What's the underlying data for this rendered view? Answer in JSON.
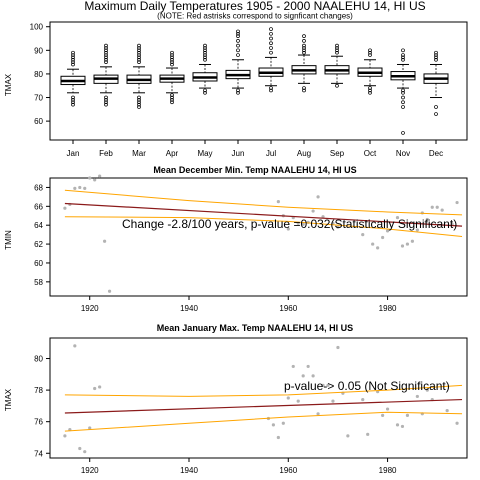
{
  "colors": {
    "box": "#000000",
    "trend": "#8b1a1a",
    "confidence": "#ffa500",
    "point": "#b3b3b3"
  },
  "chart_data": [
    {
      "type": "box",
      "title": "Maximum Daily Temperatures 1905 - 2000 NAALEHU 14, HI US",
      "subtitle": "(NOTE: Red astrisks correspond to signficant changes)",
      "ylabel": "TMAX",
      "xlabel": "",
      "ylim": [
        52,
        102
      ],
      "yticks": [
        60,
        70,
        80,
        90,
        100
      ],
      "categories": [
        "Jan",
        "Feb",
        "Mar",
        "Apr",
        "May",
        "Jun",
        "Jul",
        "Aug",
        "Sep",
        "Oct",
        "Nov",
        "Dec"
      ],
      "boxes": [
        {
          "whisker_low": 72,
          "q1": 75.5,
          "median": 77,
          "q3": 79,
          "whisker_high": 82,
          "outliers": [
            84,
            85,
            86,
            87,
            88,
            89,
            70,
            69,
            68,
            67
          ]
        },
        {
          "whisker_low": 72,
          "q1": 76,
          "median": 78,
          "q3": 79.5,
          "whisker_high": 83,
          "outliers": [
            85,
            86,
            87,
            88,
            89,
            90,
            91,
            92,
            70,
            69,
            68,
            67
          ]
        },
        {
          "whisker_low": 72,
          "q1": 76,
          "median": 77.5,
          "q3": 79.5,
          "whisker_high": 83,
          "outliers": [
            85,
            86,
            87,
            88,
            89,
            90,
            91,
            92,
            70,
            69,
            68,
            67,
            66
          ]
        },
        {
          "whisker_low": 72,
          "q1": 76.5,
          "median": 78,
          "q3": 79.5,
          "whisker_high": 82.5,
          "outliers": [
            84,
            85,
            86,
            87,
            88,
            89,
            71,
            70,
            69,
            68
          ]
        },
        {
          "whisker_low": 74,
          "q1": 77,
          "median": 78.5,
          "q3": 80.5,
          "whisker_high": 84,
          "outliers": [
            86,
            87,
            88,
            89,
            90,
            91,
            92,
            73,
            72
          ]
        },
        {
          "whisker_low": 74,
          "q1": 78,
          "median": 79.5,
          "q3": 81.5,
          "whisker_high": 86,
          "outliers": [
            88,
            90,
            92,
            94,
            96,
            97,
            98,
            73,
            72
          ]
        },
        {
          "whisker_low": 75,
          "q1": 79,
          "median": 80.5,
          "q3": 82.5,
          "whisker_high": 87,
          "outliers": [
            89,
            91,
            93,
            95,
            97,
            99,
            74,
            73
          ]
        },
        {
          "whisker_low": 76,
          "q1": 80,
          "median": 81.5,
          "q3": 83.5,
          "whisker_high": 88,
          "outliers": [
            89,
            90,
            91,
            92,
            94,
            96,
            74,
            73
          ]
        },
        {
          "whisker_low": 76,
          "q1": 80,
          "median": 81.5,
          "q3": 83.5,
          "whisker_high": 87.5,
          "outliers": [
            89,
            90,
            91,
            92,
            75
          ]
        },
        {
          "whisker_low": 75,
          "q1": 79,
          "median": 80.5,
          "q3": 82.5,
          "whisker_high": 86,
          "outliers": [
            88,
            89,
            90,
            74,
            73,
            72
          ]
        },
        {
          "whisker_low": 74,
          "q1": 77.5,
          "median": 79,
          "q3": 81,
          "whisker_high": 84,
          "outliers": [
            86,
            87,
            88,
            90,
            73,
            72,
            70,
            68,
            66,
            55
          ]
        },
        {
          "whisker_low": 70,
          "q1": 76,
          "median": 78,
          "q3": 80,
          "whisker_high": 84,
          "outliers": [
            86,
            87,
            88,
            89,
            66,
            63
          ]
        }
      ]
    },
    {
      "type": "scatter",
      "title": "Mean December Min. Temp NAALEHU 14, HI US",
      "ylabel": "TMIN",
      "xlabel": "",
      "xlim": [
        1912,
        1996
      ],
      "ylim": [
        56.5,
        69
      ],
      "xticks": [
        1920,
        1940,
        1960,
        1980
      ],
      "yticks": [
        58,
        60,
        62,
        64,
        66,
        68
      ],
      "annotation": "Change -2.8/100 years, p-value =0.032(Statistically Significant)",
      "points": [
        {
          "x": 1915,
          "y": 65.8
        },
        {
          "x": 1916,
          "y": 66.2
        },
        {
          "x": 1917,
          "y": 67.9
        },
        {
          "x": 1918,
          "y": 68.0
        },
        {
          "x": 1919,
          "y": 67.9
        },
        {
          "x": 1920,
          "y": 69.0
        },
        {
          "x": 1921,
          "y": 68.8
        },
        {
          "x": 1922,
          "y": 69.2
        },
        {
          "x": 1923,
          "y": 62.3
        },
        {
          "x": 1924,
          "y": 57.0
        },
        {
          "x": 1958,
          "y": 66.5
        },
        {
          "x": 1959,
          "y": 65.0
        },
        {
          "x": 1960,
          "y": 63.6
        },
        {
          "x": 1961,
          "y": 64.8
        },
        {
          "x": 1962,
          "y": 64.2
        },
        {
          "x": 1963,
          "y": 64.1
        },
        {
          "x": 1964,
          "y": 64.3
        },
        {
          "x": 1965,
          "y": 65.5
        },
        {
          "x": 1966,
          "y": 67.0
        },
        {
          "x": 1967,
          "y": 64.9
        },
        {
          "x": 1969,
          "y": 64.2
        },
        {
          "x": 1970,
          "y": 63.8
        },
        {
          "x": 1975,
          "y": 63.0
        },
        {
          "x": 1977,
          "y": 62.0
        },
        {
          "x": 1978,
          "y": 61.6
        },
        {
          "x": 1979,
          "y": 62.7
        },
        {
          "x": 1980,
          "y": 63.4
        },
        {
          "x": 1982,
          "y": 64.8
        },
        {
          "x": 1983,
          "y": 61.8
        },
        {
          "x": 1984,
          "y": 62.0
        },
        {
          "x": 1985,
          "y": 62.3
        },
        {
          "x": 1986,
          "y": 63.5
        },
        {
          "x": 1987,
          "y": 65.3
        },
        {
          "x": 1988,
          "y": 64.6
        },
        {
          "x": 1989,
          "y": 65.9
        },
        {
          "x": 1990,
          "y": 65.9
        },
        {
          "x": 1991,
          "y": 65.6
        },
        {
          "x": 1993,
          "y": 64.1
        },
        {
          "x": 1994,
          "y": 66.4
        }
      ],
      "trend": [
        {
          "x": 1915,
          "y": 66.3
        },
        {
          "x": 1995,
          "y": 63.9
        }
      ],
      "upper_band": [
        {
          "x": 1915,
          "y": 67.7
        },
        {
          "x": 1940,
          "y": 66.6
        },
        {
          "x": 1960,
          "y": 65.9
        },
        {
          "x": 1980,
          "y": 65.4
        },
        {
          "x": 1995,
          "y": 65.1
        }
      ],
      "lower_band": [
        {
          "x": 1915,
          "y": 64.9
        },
        {
          "x": 1940,
          "y": 64.8
        },
        {
          "x": 1960,
          "y": 64.4
        },
        {
          "x": 1980,
          "y": 63.6
        },
        {
          "x": 1995,
          "y": 62.8
        }
      ]
    },
    {
      "type": "scatter",
      "title": "Mean January Max. Temp NAALEHU 14, HI US",
      "ylabel": "TMAX",
      "xlabel": "",
      "xlim": [
        1912,
        1996
      ],
      "ylim": [
        73.7,
        81.3
      ],
      "xticks": [
        1920,
        1940,
        1960,
        1980
      ],
      "yticks": [
        74,
        76,
        78,
        80
      ],
      "annotation": "p-value-> 0.05 (Not Significant)",
      "points": [
        {
          "x": 1915,
          "y": 75.1
        },
        {
          "x": 1916,
          "y": 75.5
        },
        {
          "x": 1917,
          "y": 80.8
        },
        {
          "x": 1918,
          "y": 74.3
        },
        {
          "x": 1919,
          "y": 74.1
        },
        {
          "x": 1920,
          "y": 75.6
        },
        {
          "x": 1921,
          "y": 78.1
        },
        {
          "x": 1922,
          "y": 78.2
        },
        {
          "x": 1956,
          "y": 76.2
        },
        {
          "x": 1957,
          "y": 75.8
        },
        {
          "x": 1958,
          "y": 75.0
        },
        {
          "x": 1959,
          "y": 75.9
        },
        {
          "x": 1960,
          "y": 77.5
        },
        {
          "x": 1961,
          "y": 79.5
        },
        {
          "x": 1962,
          "y": 77.3
        },
        {
          "x": 1963,
          "y": 78.9
        },
        {
          "x": 1964,
          "y": 79.5
        },
        {
          "x": 1965,
          "y": 78.9
        },
        {
          "x": 1966,
          "y": 76.5
        },
        {
          "x": 1967,
          "y": 78.3
        },
        {
          "x": 1968,
          "y": 78.3
        },
        {
          "x": 1969,
          "y": 77.3
        },
        {
          "x": 1970,
          "y": 80.7
        },
        {
          "x": 1971,
          "y": 77.8
        },
        {
          "x": 1972,
          "y": 75.1
        },
        {
          "x": 1975,
          "y": 77.4
        },
        {
          "x": 1976,
          "y": 75.2
        },
        {
          "x": 1978,
          "y": 77.9
        },
        {
          "x": 1979,
          "y": 76.4
        },
        {
          "x": 1980,
          "y": 76.8
        },
        {
          "x": 1982,
          "y": 75.8
        },
        {
          "x": 1983,
          "y": 75.7
        },
        {
          "x": 1984,
          "y": 76.4
        },
        {
          "x": 1986,
          "y": 77.6
        },
        {
          "x": 1987,
          "y": 76.5
        },
        {
          "x": 1988,
          "y": 78.0
        },
        {
          "x": 1989,
          "y": 77.4
        },
        {
          "x": 1992,
          "y": 76.7
        },
        {
          "x": 1994,
          "y": 75.9
        }
      ],
      "trend": [
        {
          "x": 1915,
          "y": 76.55
        },
        {
          "x": 1995,
          "y": 77.4
        }
      ],
      "upper_band": [
        {
          "x": 1915,
          "y": 77.7
        },
        {
          "x": 1940,
          "y": 77.6
        },
        {
          "x": 1960,
          "y": 77.7
        },
        {
          "x": 1980,
          "y": 78.0
        },
        {
          "x": 1995,
          "y": 78.3
        }
      ],
      "lower_band": [
        {
          "x": 1915,
          "y": 75.4
        },
        {
          "x": 1940,
          "y": 75.9
        },
        {
          "x": 1960,
          "y": 76.3
        },
        {
          "x": 1980,
          "y": 76.6
        },
        {
          "x": 1995,
          "y": 76.5
        }
      ]
    }
  ]
}
